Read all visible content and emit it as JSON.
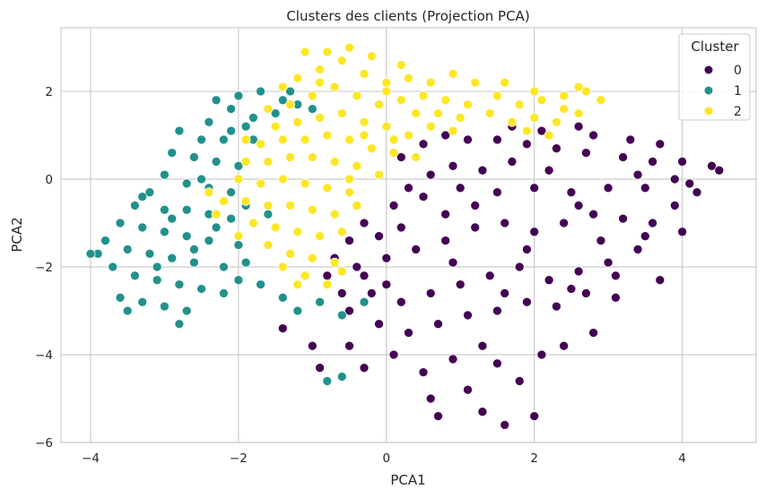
{
  "chart_data": {
    "type": "scatter",
    "title": "Clusters des clients (Projection PCA)",
    "xlabel": "PCA1",
    "ylabel": "PCA2",
    "xlim": [
      -4.4,
      5.0
    ],
    "ylim": [
      -6.0,
      3.45
    ],
    "xticks": [
      -4,
      -2,
      0,
      2,
      4
    ],
    "yticks": [
      2,
      0,
      -2,
      -4,
      -6
    ],
    "xtick_labels": [
      "−4",
      "−2",
      "0",
      "2",
      "4"
    ],
    "ytick_labels": [
      "2",
      "0",
      "−2",
      "−4",
      "−6"
    ],
    "grid": true,
    "legend": {
      "title": "Cluster",
      "placement": "top-right",
      "entries": [
        {
          "label": "0",
          "color": "#440154"
        },
        {
          "label": "1",
          "color": "#21918c"
        },
        {
          "label": "2",
          "color": "#fde725"
        }
      ]
    },
    "series": [
      {
        "name": "0",
        "color": "#440154",
        "points": [
          [
            0.2,
            0.5
          ],
          [
            0.5,
            0.8
          ],
          [
            0.8,
            1.0
          ],
          [
            1.1,
            0.9
          ],
          [
            1.5,
            0.9
          ],
          [
            1.9,
            0.8
          ],
          [
            2.3,
            0.7
          ],
          [
            2.7,
            0.6
          ],
          [
            2.6,
            1.2
          ],
          [
            2.8,
            1.0
          ],
          [
            3.2,
            0.5
          ],
          [
            3.6,
            0.4
          ],
          [
            4.0,
            0.4
          ],
          [
            4.4,
            0.3
          ],
          [
            4.5,
            0.2
          ],
          [
            3.9,
            0.0
          ],
          [
            3.5,
            -0.2
          ],
          [
            3.0,
            -0.2
          ],
          [
            2.5,
            -0.3
          ],
          [
            2.0,
            -0.2
          ],
          [
            1.5,
            -0.3
          ],
          [
            1.0,
            -0.2
          ],
          [
            0.5,
            -0.4
          ],
          [
            0.1,
            -0.6
          ],
          [
            -0.3,
            -1.0
          ],
          [
            -0.5,
            -1.4
          ],
          [
            -0.7,
            -1.8
          ],
          [
            -0.4,
            -2.0
          ],
          [
            0.0,
            -1.8
          ],
          [
            0.4,
            -1.6
          ],
          [
            0.8,
            -1.4
          ],
          [
            1.2,
            -1.1
          ],
          [
            1.6,
            -1.0
          ],
          [
            2.0,
            -1.2
          ],
          [
            2.4,
            -1.0
          ],
          [
            2.8,
            -0.8
          ],
          [
            3.2,
            -0.9
          ],
          [
            3.6,
            -1.0
          ],
          [
            4.0,
            -1.2
          ],
          [
            3.4,
            -1.6
          ],
          [
            3.0,
            -1.9
          ],
          [
            2.6,
            -2.1
          ],
          [
            2.2,
            -2.3
          ],
          [
            1.8,
            -2.0
          ],
          [
            1.4,
            -2.2
          ],
          [
            1.0,
            -2.4
          ],
          [
            0.6,
            -2.6
          ],
          [
            0.2,
            -2.8
          ],
          [
            -0.2,
            -2.6
          ],
          [
            -0.6,
            -2.6
          ],
          [
            -0.8,
            -2.2
          ],
          [
            -0.5,
            -3.0
          ],
          [
            -0.1,
            -3.3
          ],
          [
            0.3,
            -3.5
          ],
          [
            0.7,
            -3.3
          ],
          [
            1.1,
            -3.1
          ],
          [
            1.5,
            -3.0
          ],
          [
            1.9,
            -2.8
          ],
          [
            2.3,
            -2.9
          ],
          [
            2.7,
            -2.6
          ],
          [
            3.1,
            -2.7
          ],
          [
            1.3,
            -3.8
          ],
          [
            0.9,
            -4.1
          ],
          [
            0.5,
            -4.4
          ],
          [
            0.1,
            -4.0
          ],
          [
            -0.3,
            -4.3
          ],
          [
            -0.5,
            -3.8
          ],
          [
            1.5,
            -4.2
          ],
          [
            1.8,
            -4.6
          ],
          [
            2.1,
            -4.0
          ],
          [
            2.4,
            -3.8
          ],
          [
            2.8,
            -3.5
          ],
          [
            1.1,
            -4.8
          ],
          [
            1.3,
            -5.3
          ],
          [
            0.7,
            -5.4
          ],
          [
            1.6,
            -5.6
          ],
          [
            2.0,
            -5.4
          ],
          [
            -1.0,
            -3.8
          ],
          [
            -0.9,
            -4.3
          ],
          [
            0.6,
            -5.0
          ],
          [
            3.5,
            -1.3
          ],
          [
            3.9,
            -0.6
          ],
          [
            4.2,
            -0.3
          ],
          [
            2.2,
            0.2
          ],
          [
            1.7,
            0.4
          ],
          [
            1.3,
            0.2
          ],
          [
            0.9,
            0.3
          ],
          [
            0.6,
            0.1
          ],
          [
            0.3,
            -0.2
          ],
          [
            -0.1,
            -1.3
          ],
          [
            0.2,
            -1.1
          ],
          [
            1.9,
            -1.6
          ],
          [
            2.9,
            -1.4
          ],
          [
            3.7,
            -2.3
          ],
          [
            3.1,
            -2.2
          ],
          [
            0.9,
            -1.9
          ],
          [
            1.6,
            -2.6
          ],
          [
            -0.3,
            -2.2
          ],
          [
            0.0,
            -2.4
          ],
          [
            2.5,
            -2.5
          ],
          [
            3.3,
            0.9
          ],
          [
            3.7,
            0.8
          ],
          [
            2.1,
            1.1
          ],
          [
            1.7,
            1.2
          ],
          [
            0.8,
            -0.8
          ],
          [
            1.2,
            -0.6
          ],
          [
            2.6,
            -0.6
          ],
          [
            3.4,
            0.1
          ],
          [
            4.1,
            -0.1
          ],
          [
            -1.4,
            -3.4
          ]
        ]
      },
      {
        "name": "1",
        "color": "#21918c",
        "points": [
          [
            -2.0,
            1.9
          ],
          [
            -1.7,
            2.0
          ],
          [
            -1.3,
            2.0
          ],
          [
            -1.2,
            1.7
          ],
          [
            -1.5,
            1.5
          ],
          [
            -1.8,
            1.4
          ],
          [
            -2.1,
            1.6
          ],
          [
            -2.3,
            1.8
          ],
          [
            -2.4,
            1.3
          ],
          [
            -2.1,
            1.1
          ],
          [
            -1.8,
            0.9
          ],
          [
            -2.5,
            0.9
          ],
          [
            -2.8,
            1.1
          ],
          [
            -2.6,
            0.5
          ],
          [
            -2.3,
            0.4
          ],
          [
            -2.0,
            0.3
          ],
          [
            -2.9,
            0.6
          ],
          [
            -3.0,
            0.1
          ],
          [
            -2.7,
            -0.1
          ],
          [
            -2.4,
            -0.2
          ],
          [
            -2.1,
            -0.3
          ],
          [
            -3.2,
            -0.3
          ],
          [
            -3.4,
            -0.6
          ],
          [
            -3.0,
            -0.7
          ],
          [
            -2.7,
            -0.7
          ],
          [
            -2.4,
            -0.8
          ],
          [
            -2.1,
            -0.9
          ],
          [
            -3.6,
            -1.0
          ],
          [
            -3.3,
            -1.1
          ],
          [
            -3.0,
            -1.2
          ],
          [
            -2.7,
            -1.3
          ],
          [
            -2.4,
            -1.4
          ],
          [
            -2.0,
            -1.5
          ],
          [
            -3.8,
            -1.4
          ],
          [
            -3.5,
            -1.6
          ],
          [
            -3.2,
            -1.7
          ],
          [
            -2.9,
            -1.8
          ],
          [
            -2.6,
            -1.9
          ],
          [
            -2.2,
            -2.0
          ],
          [
            -1.9,
            -1.9
          ],
          [
            -3.7,
            -2.0
          ],
          [
            -3.4,
            -2.2
          ],
          [
            -3.1,
            -2.3
          ],
          [
            -2.8,
            -2.4
          ],
          [
            -2.5,
            -2.5
          ],
          [
            -2.2,
            -2.6
          ],
          [
            -3.6,
            -2.7
          ],
          [
            -3.3,
            -2.8
          ],
          [
            -3.0,
            -2.9
          ],
          [
            -2.7,
            -3.0
          ],
          [
            -3.5,
            -3.0
          ],
          [
            -2.8,
            -3.3
          ],
          [
            -1.7,
            -2.4
          ],
          [
            -1.4,
            -2.7
          ],
          [
            -1.2,
            -3.0
          ],
          [
            -0.9,
            -2.8
          ],
          [
            -0.6,
            -3.1
          ],
          [
            -0.3,
            -2.8
          ],
          [
            -3.9,
            -1.7
          ],
          [
            -4.0,
            -1.7
          ],
          [
            -1.9,
            -0.6
          ],
          [
            -1.6,
            -0.8
          ],
          [
            -2.2,
            0.9
          ],
          [
            -2.5,
            0.0
          ],
          [
            -1.9,
            1.2
          ],
          [
            -1.4,
            1.8
          ],
          [
            -1.0,
            1.6
          ],
          [
            -3.1,
            -2.0
          ],
          [
            -0.8,
            -4.6
          ],
          [
            -0.6,
            -4.5
          ],
          [
            -2.0,
            -2.3
          ],
          [
            -2.6,
            -1.6
          ],
          [
            -3.3,
            -0.4
          ],
          [
            -2.9,
            -0.9
          ],
          [
            -2.3,
            -1.1
          ]
        ]
      },
      {
        "name": "2",
        "color": "#fde725",
        "points": [
          [
            -1.2,
            2.3
          ],
          [
            -0.9,
            2.5
          ],
          [
            -0.6,
            2.7
          ],
          [
            -0.3,
            2.4
          ],
          [
            0.0,
            2.2
          ],
          [
            0.3,
            2.3
          ],
          [
            0.6,
            2.2
          ],
          [
            0.9,
            2.4
          ],
          [
            1.2,
            2.2
          ],
          [
            1.5,
            1.9
          ],
          [
            1.8,
            1.7
          ],
          [
            2.1,
            1.8
          ],
          [
            2.4,
            1.9
          ],
          [
            2.7,
            2.0
          ],
          [
            2.9,
            1.8
          ],
          [
            2.6,
            1.5
          ],
          [
            2.3,
            1.3
          ],
          [
            2.0,
            1.4
          ],
          [
            1.7,
            1.3
          ],
          [
            1.4,
            1.5
          ],
          [
            1.1,
            1.7
          ],
          [
            0.8,
            1.8
          ],
          [
            0.5,
            1.9
          ],
          [
            0.2,
            1.8
          ],
          [
            -0.1,
            1.7
          ],
          [
            -0.4,
            1.9
          ],
          [
            -0.7,
            2.1
          ],
          [
            -1.0,
            1.9
          ],
          [
            -1.3,
            1.7
          ],
          [
            -1.6,
            1.6
          ],
          [
            -1.5,
            1.2
          ],
          [
            -1.2,
            1.3
          ],
          [
            -0.9,
            1.4
          ],
          [
            -0.6,
            1.5
          ],
          [
            -0.3,
            1.3
          ],
          [
            0.0,
            1.2
          ],
          [
            0.3,
            1.0
          ],
          [
            0.6,
            1.2
          ],
          [
            0.9,
            1.1
          ],
          [
            -1.7,
            0.8
          ],
          [
            -1.4,
            0.9
          ],
          [
            -1.1,
            0.9
          ],
          [
            -0.8,
            1.0
          ],
          [
            -0.5,
            0.9
          ],
          [
            -0.2,
            0.7
          ],
          [
            0.1,
            0.6
          ],
          [
            -1.9,
            0.4
          ],
          [
            -1.6,
            0.4
          ],
          [
            -1.3,
            0.5
          ],
          [
            -1.0,
            0.5
          ],
          [
            -0.7,
            0.4
          ],
          [
            -0.4,
            0.3
          ],
          [
            -0.1,
            0.1
          ],
          [
            -2.0,
            0.0
          ],
          [
            -1.7,
            -0.1
          ],
          [
            -1.4,
            0.0
          ],
          [
            -1.1,
            -0.1
          ],
          [
            -0.8,
            -0.2
          ],
          [
            -0.5,
            -0.3
          ],
          [
            -2.2,
            -0.5
          ],
          [
            -1.9,
            -0.5
          ],
          [
            -1.6,
            -0.6
          ],
          [
            -1.3,
            -0.6
          ],
          [
            -1.0,
            -0.7
          ],
          [
            -0.7,
            -0.8
          ],
          [
            -0.4,
            -0.6
          ],
          [
            -1.8,
            -1.0
          ],
          [
            -1.5,
            -1.1
          ],
          [
            -1.2,
            -1.2
          ],
          [
            -0.9,
            -1.3
          ],
          [
            -0.6,
            -1.2
          ],
          [
            -1.6,
            -1.5
          ],
          [
            -1.3,
            -1.7
          ],
          [
            -1.0,
            -1.8
          ],
          [
            -0.7,
            -1.9
          ],
          [
            -1.1,
            -2.2
          ],
          [
            -0.8,
            -2.4
          ],
          [
            -0.6,
            -2.1
          ],
          [
            -0.8,
            2.9
          ],
          [
            -0.5,
            3.0
          ],
          [
            -1.1,
            2.9
          ],
          [
            0.2,
            2.6
          ],
          [
            -0.2,
            2.8
          ],
          [
            2.0,
            2.0
          ],
          [
            1.6,
            2.2
          ],
          [
            2.6,
            2.1
          ],
          [
            2.2,
            1.0
          ],
          [
            -2.3,
            -0.8
          ],
          [
            -2.0,
            -1.3
          ],
          [
            0.4,
            1.5
          ],
          [
            0.7,
            1.5
          ],
          [
            -0.3,
            1.0
          ],
          [
            -1.9,
            0.9
          ],
          [
            -2.4,
            -0.3
          ],
          [
            -0.5,
            0.0
          ],
          [
            0.1,
            0.9
          ],
          [
            1.0,
            1.4
          ],
          [
            1.9,
            1.1
          ],
          [
            2.4,
            1.6
          ],
          [
            0.4,
            0.5
          ],
          [
            -1.4,
            -2.0
          ],
          [
            -1.2,
            -2.4
          ],
          [
            -0.9,
            2.2
          ],
          [
            -1.4,
            2.1
          ],
          [
            0.0,
            2.0
          ]
        ]
      }
    ]
  }
}
